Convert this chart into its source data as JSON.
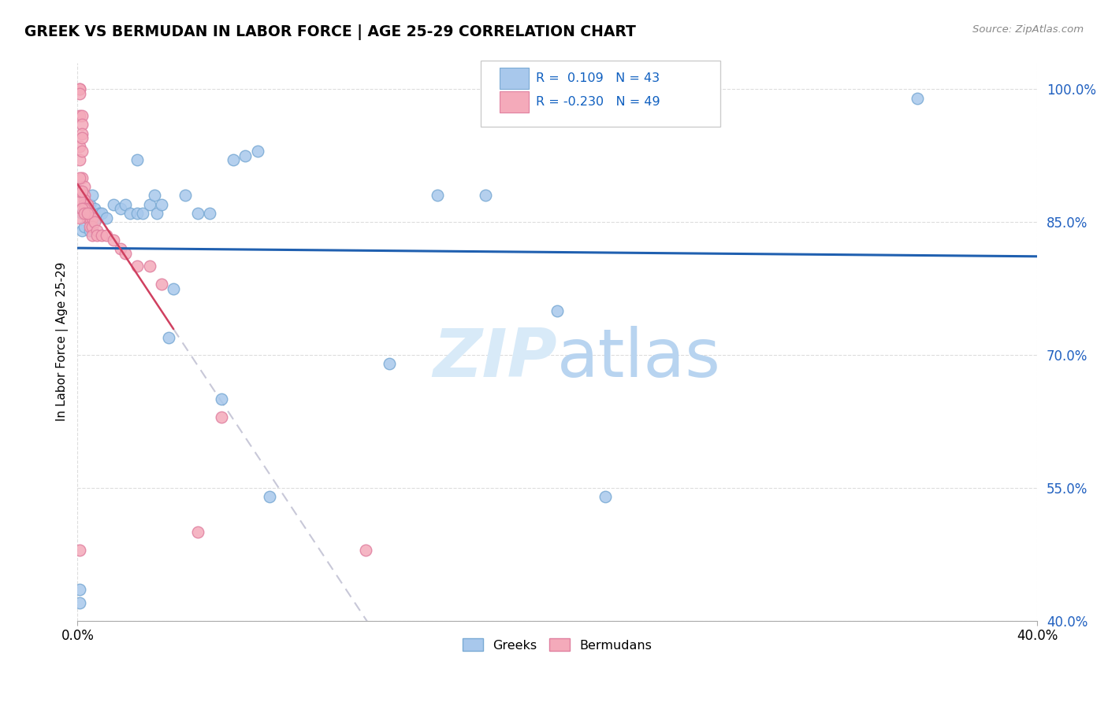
{
  "title": "GREEK VS BERMUDAN IN LABOR FORCE | AGE 25-29 CORRELATION CHART",
  "source": "Source: ZipAtlas.com",
  "ylabel": "In Labor Force | Age 25-29",
  "xlim": [
    0.0,
    0.4
  ],
  "ylim": [
    0.4,
    1.03
  ],
  "yticks": [
    0.4,
    0.55,
    0.7,
    0.85,
    1.0
  ],
  "ytick_labels": [
    "40.0%",
    "55.0%",
    "70.0%",
    "85.0%",
    "100.0%"
  ],
  "greek_color": "#A8C8EC",
  "greek_edge_color": "#7AAAD4",
  "bermudan_color": "#F4AABA",
  "bermudan_edge_color": "#E080A0",
  "greek_R": 0.109,
  "greek_N": 43,
  "bermudan_R": -0.23,
  "bermudan_N": 49,
  "trend_greek_color": "#2060B0",
  "trend_bermudan_solid_color": "#D04060",
  "trend_bermudan_dashed_color": "#C8C8D8",
  "watermark_color": "#D8EAF8",
  "greek_points_x": [
    0.001,
    0.001,
    0.002,
    0.002,
    0.003,
    0.003,
    0.004,
    0.005,
    0.005,
    0.006,
    0.007,
    0.007,
    0.008,
    0.009,
    0.01,
    0.012,
    0.015,
    0.018,
    0.02,
    0.022,
    0.025,
    0.027,
    0.03,
    0.032,
    0.033,
    0.035,
    0.04,
    0.045,
    0.05,
    0.055,
    0.065,
    0.07,
    0.08,
    0.13,
    0.15,
    0.17,
    0.2,
    0.22,
    0.35,
    0.06,
    0.075,
    0.038,
    0.025
  ],
  "greek_points_y": [
    0.42,
    0.435,
    0.84,
    0.86,
    0.845,
    0.87,
    0.855,
    0.84,
    0.87,
    0.88,
    0.855,
    0.865,
    0.855,
    0.86,
    0.86,
    0.855,
    0.87,
    0.865,
    0.87,
    0.86,
    0.86,
    0.86,
    0.87,
    0.88,
    0.86,
    0.87,
    0.775,
    0.88,
    0.86,
    0.86,
    0.92,
    0.925,
    0.54,
    0.69,
    0.88,
    0.88,
    0.75,
    0.54,
    0.99,
    0.65,
    0.93,
    0.72,
    0.92
  ],
  "bermudan_points_x": [
    0.001,
    0.001,
    0.001,
    0.001,
    0.001,
    0.001,
    0.002,
    0.002,
    0.002,
    0.002,
    0.002,
    0.003,
    0.003,
    0.003,
    0.003,
    0.004,
    0.004,
    0.004,
    0.005,
    0.005,
    0.005,
    0.006,
    0.006,
    0.006,
    0.007,
    0.008,
    0.008,
    0.01,
    0.012,
    0.015,
    0.018,
    0.02,
    0.025,
    0.03,
    0.001,
    0.002,
    0.003,
    0.035,
    0.12,
    0.001,
    0.002,
    0.003,
    0.004,
    0.001,
    0.002,
    0.06,
    0.001,
    0.05,
    0.001
  ],
  "bermudan_points_y": [
    1.0,
    1.0,
    0.995,
    0.97,
    0.935,
    0.92,
    0.97,
    0.96,
    0.95,
    0.93,
    0.9,
    0.89,
    0.88,
    0.875,
    0.87,
    0.87,
    0.865,
    0.855,
    0.86,
    0.855,
    0.845,
    0.855,
    0.845,
    0.835,
    0.85,
    0.84,
    0.835,
    0.835,
    0.835,
    0.83,
    0.82,
    0.815,
    0.8,
    0.8,
    0.875,
    0.945,
    0.865,
    0.78,
    0.48,
    0.855,
    0.865,
    0.86,
    0.86,
    0.885,
    0.885,
    0.63,
    0.9,
    0.5,
    0.48
  ]
}
